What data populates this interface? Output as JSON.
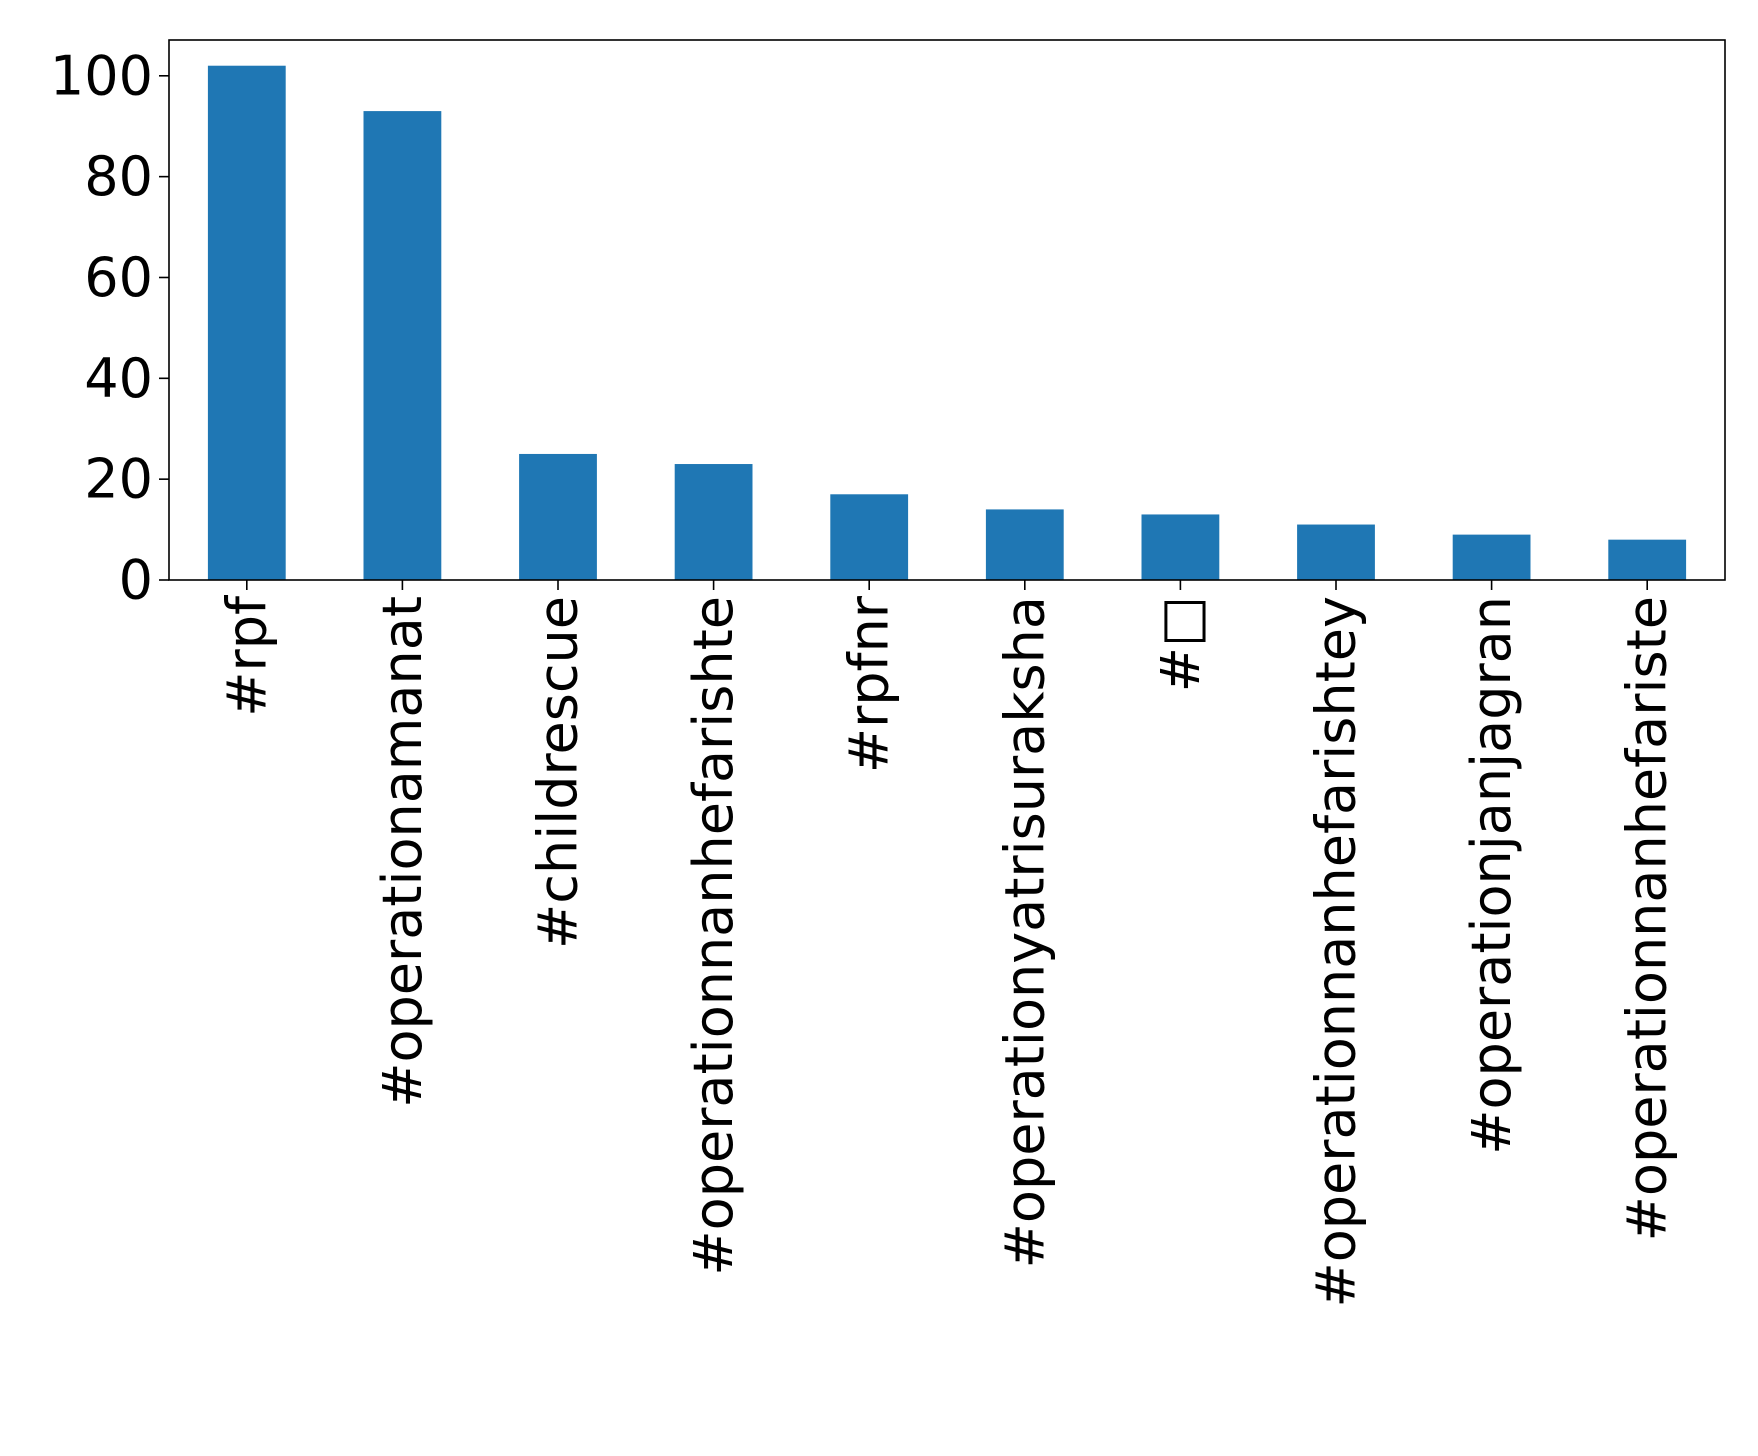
{
  "chart_data": {
    "type": "bar",
    "title": "",
    "xlabel": "",
    "ylabel": "",
    "categories": [
      "#rpf",
      "#operationamanat",
      "#childrescue",
      "#operationnanhefarishte",
      "#rpfnr",
      "#operationyatrisuraksha",
      "#□",
      "#operationnanhefarishtey",
      "#operationjanjagran",
      "#operationnanhefariste"
    ],
    "values": [
      102,
      93,
      25,
      23,
      17,
      14,
      13,
      11,
      9,
      8
    ],
    "ylim": [
      0,
      107.1
    ],
    "yticks": [
      0,
      20,
      40,
      60,
      80,
      100
    ],
    "grid": false,
    "legend": "none",
    "colors": {
      "bar": "#1f77b4",
      "axis": "#000000",
      "background": "#ffffff"
    }
  }
}
